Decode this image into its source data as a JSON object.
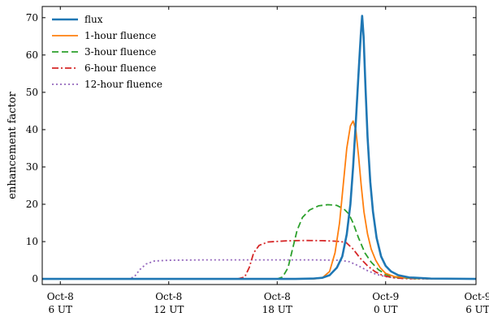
{
  "chart_data": {
    "type": "line",
    "title": "",
    "xlabel": "",
    "ylabel": "enhancement factor",
    "xlim": [
      -1,
      23
    ],
    "ylim": [
      -1.5,
      73
    ],
    "grid": false,
    "legend_position": "top-left",
    "x_unit": "hours since Oct-8 6 UT",
    "x_ticks": [
      {
        "value": 0,
        "line1": "Oct-8",
        "line2": "6 UT"
      },
      {
        "value": 6,
        "line1": "Oct-8",
        "line2": "12 UT"
      },
      {
        "value": 12,
        "line1": "Oct-8",
        "line2": "18 UT"
      },
      {
        "value": 18,
        "line1": "Oct-9",
        "line2": "0 UT"
      },
      {
        "value": 24,
        "line1": "Oct-9",
        "line2": "6 UT"
      }
    ],
    "y_ticks": [
      0,
      10,
      20,
      30,
      40,
      50,
      60,
      70
    ],
    "series": [
      {
        "name": "flux",
        "color": "#1f77b4",
        "dash": "solid",
        "width": 2.6,
        "points": [
          [
            -1,
            0
          ],
          [
            13,
            0
          ],
          [
            14,
            0.1
          ],
          [
            14.5,
            0.3
          ],
          [
            14.9,
            1
          ],
          [
            15.3,
            3
          ],
          [
            15.6,
            6
          ],
          [
            15.85,
            12
          ],
          [
            16.05,
            20
          ],
          [
            16.2,
            30
          ],
          [
            16.35,
            42
          ],
          [
            16.5,
            55
          ],
          [
            16.62,
            65
          ],
          [
            16.7,
            70.5
          ],
          [
            16.78,
            65
          ],
          [
            16.88,
            52
          ],
          [
            17.0,
            38
          ],
          [
            17.15,
            26
          ],
          [
            17.3,
            18
          ],
          [
            17.5,
            11
          ],
          [
            17.75,
            6
          ],
          [
            18,
            3.5
          ],
          [
            18.3,
            2
          ],
          [
            18.7,
            1
          ],
          [
            19.3,
            0.4
          ],
          [
            20.5,
            0.1
          ],
          [
            23,
            0
          ]
        ]
      },
      {
        "name": "1-hour fluence",
        "color": "#ff7f0e",
        "dash": "solid",
        "width": 1.8,
        "points": [
          [
            -1,
            0
          ],
          [
            14,
            0
          ],
          [
            14.5,
            0.3
          ],
          [
            14.9,
            2
          ],
          [
            15.2,
            7
          ],
          [
            15.45,
            15
          ],
          [
            15.65,
            25
          ],
          [
            15.85,
            35
          ],
          [
            16.05,
            41
          ],
          [
            16.2,
            42.3
          ],
          [
            16.35,
            40
          ],
          [
            16.5,
            33
          ],
          [
            16.65,
            25
          ],
          [
            16.8,
            18
          ],
          [
            17.0,
            12
          ],
          [
            17.2,
            8
          ],
          [
            17.45,
            5
          ],
          [
            17.7,
            3
          ],
          [
            18,
            1.5
          ],
          [
            18.5,
            0.6
          ],
          [
            19.5,
            0.2
          ],
          [
            21,
            0
          ],
          [
            23,
            0
          ]
        ]
      },
      {
        "name": "3-hour fluence",
        "color": "#2ca02c",
        "dash": "8,4",
        "width": 1.8,
        "points": [
          [
            -1,
            0
          ],
          [
            12,
            0
          ],
          [
            12.3,
            0.5
          ],
          [
            12.6,
            3
          ],
          [
            12.85,
            8
          ],
          [
            13.1,
            13
          ],
          [
            13.4,
            16.5
          ],
          [
            13.8,
            18.5
          ],
          [
            14.3,
            19.6
          ],
          [
            14.8,
            19.9
          ],
          [
            15.3,
            19.7
          ],
          [
            15.7,
            18.7
          ],
          [
            15.95,
            17.5
          ],
          [
            16.2,
            15
          ],
          [
            16.5,
            11
          ],
          [
            16.85,
            7
          ],
          [
            17.2,
            4.5
          ],
          [
            17.6,
            2.5
          ],
          [
            18,
            1.2
          ],
          [
            18.5,
            0.5
          ],
          [
            19.5,
            0.1
          ],
          [
            23,
            0
          ]
        ]
      },
      {
        "name": "6-hour fluence",
        "color": "#d62728",
        "dash": "8,3,2,3",
        "width": 1.8,
        "points": [
          [
            -1,
            0
          ],
          [
            9.8,
            0
          ],
          [
            10.2,
            0.5
          ],
          [
            10.45,
            3
          ],
          [
            10.7,
            7
          ],
          [
            11,
            9
          ],
          [
            11.5,
            9.9
          ],
          [
            12.5,
            10.2
          ],
          [
            13.5,
            10.3
          ],
          [
            14.5,
            10.25
          ],
          [
            15.3,
            10.1
          ],
          [
            15.8,
            9.8
          ],
          [
            16.2,
            8
          ],
          [
            16.6,
            5.5
          ],
          [
            17.0,
            3.5
          ],
          [
            17.4,
            2
          ],
          [
            17.8,
            1
          ],
          [
            18.3,
            0.4
          ],
          [
            19,
            0.1
          ],
          [
            23,
            0
          ]
        ]
      },
      {
        "name": "12-hour fluence",
        "color": "#9467bd",
        "dash": "2,3",
        "width": 1.8,
        "points": [
          [
            -1,
            0
          ],
          [
            3.8,
            0
          ],
          [
            4.1,
            0.6
          ],
          [
            4.4,
            2.5
          ],
          [
            4.75,
            4
          ],
          [
            5.2,
            4.8
          ],
          [
            6,
            5
          ],
          [
            8,
            5.1
          ],
          [
            10,
            5.1
          ],
          [
            12,
            5.1
          ],
          [
            14,
            5.1
          ],
          [
            15.5,
            5
          ],
          [
            16,
            4.6
          ],
          [
            16.5,
            3.5
          ],
          [
            17,
            2.2
          ],
          [
            17.5,
            1.2
          ],
          [
            18,
            0.6
          ],
          [
            18.6,
            0.2
          ],
          [
            19.5,
            0
          ],
          [
            23,
            0
          ]
        ]
      }
    ]
  }
}
